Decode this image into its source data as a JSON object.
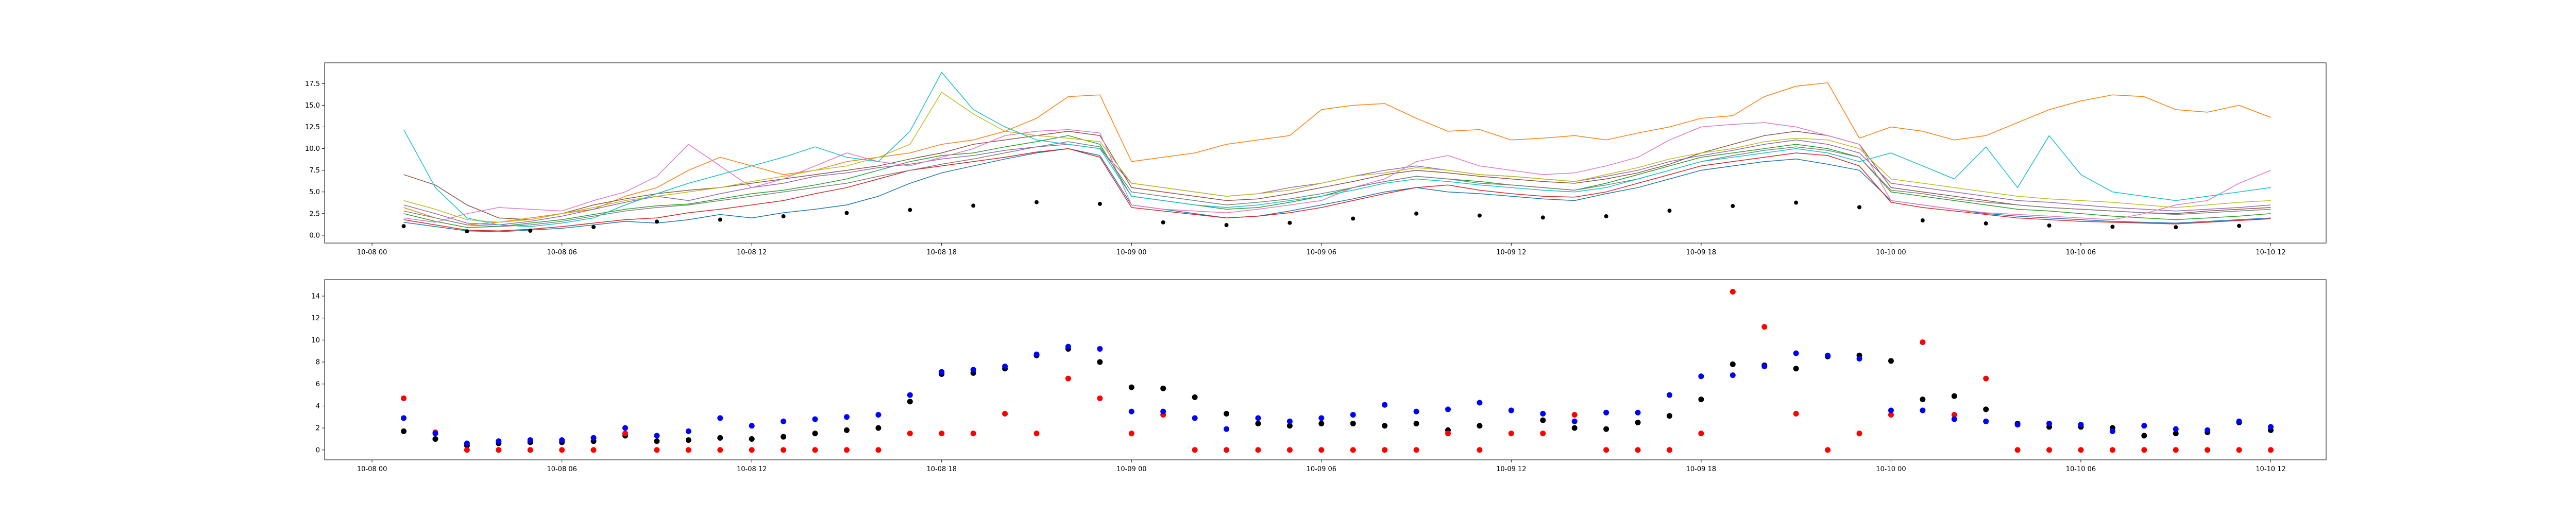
{
  "chart_data": [
    {
      "type": "line",
      "title": "",
      "xlabel": "",
      "ylabel": "",
      "xlim": [
        "2000-10-07T22:30",
        "2000-10-10T13:45"
      ],
      "ylim": [
        -0.9,
        19.9
      ],
      "x_ticks": [
        "10-08 00",
        "10-08 06",
        "10-08 12",
        "10-08 18",
        "10-09 00",
        "10-09 06",
        "10-09 12",
        "10-09 18",
        "10-10 00",
        "10-10 06",
        "10-10 12"
      ],
      "y_ticks": [
        0.0,
        2.5,
        5.0,
        7.5,
        10.0,
        12.5,
        15.0,
        17.5
      ],
      "grid": false,
      "x": [
        "2000-10-08T01:00",
        "2000-10-08T02:00",
        "2000-10-08T03:00",
        "2000-10-08T04:00",
        "2000-10-08T05:00",
        "2000-10-08T06:00",
        "2000-10-08T07:00",
        "2000-10-08T08:00",
        "2000-10-08T09:00",
        "2000-10-08T10:00",
        "2000-10-08T11:00",
        "2000-10-08T12:00",
        "2000-10-08T13:00",
        "2000-10-08T14:00",
        "2000-10-08T15:00",
        "2000-10-08T16:00",
        "2000-10-08T17:00",
        "2000-10-08T18:00",
        "2000-10-08T19:00",
        "2000-10-08T20:00",
        "2000-10-08T21:00",
        "2000-10-08T22:00",
        "2000-10-08T23:00",
        "2000-10-09T00:00",
        "2000-10-09T01:00",
        "2000-10-09T02:00",
        "2000-10-09T03:00",
        "2000-10-09T04:00",
        "2000-10-09T05:00",
        "2000-10-09T06:00",
        "2000-10-09T07:00",
        "2000-10-09T08:00",
        "2000-10-09T09:00",
        "2000-10-09T10:00",
        "2000-10-09T11:00",
        "2000-10-09T12:00",
        "2000-10-09T13:00",
        "2000-10-09T14:00",
        "2000-10-09T15:00",
        "2000-10-09T16:00",
        "2000-10-09T17:00",
        "2000-10-09T18:00",
        "2000-10-09T19:00",
        "2000-10-09T20:00",
        "2000-10-09T21:00",
        "2000-10-09T22:00",
        "2000-10-09T23:00",
        "2000-10-10T00:00",
        "2000-10-10T01:00",
        "2000-10-10T02:00",
        "2000-10-10T03:00",
        "2000-10-10T04:00",
        "2000-10-10T05:00",
        "2000-10-10T06:00",
        "2000-10-10T07:00",
        "2000-10-10T08:00",
        "2000-10-10T09:00",
        "2000-10-10T10:00",
        "2000-10-10T11:00",
        "2000-10-10T12:00"
      ],
      "series": [
        {
          "color": "#1f77b4",
          "values": [
            1.5,
            1.0,
            0.5,
            0.4,
            0.6,
            0.8,
            1.2,
            1.6,
            1.4,
            1.8,
            2.4,
            2.0,
            2.6,
            3.0,
            3.5,
            4.5,
            6.0,
            7.2,
            8.0,
            8.8,
            9.5,
            10.0,
            9.2,
            3.5,
            3.0,
            2.5,
            2.0,
            2.2,
            2.8,
            3.5,
            4.2,
            5.0,
            5.5,
            5.0,
            4.8,
            4.5,
            4.2,
            4.0,
            4.8,
            5.5,
            6.5,
            7.5,
            8.0,
            8.5,
            8.8,
            8.2,
            7.5,
            4.0,
            3.5,
            3.0,
            2.5,
            2.2,
            2.0,
            1.8,
            1.6,
            1.5,
            1.4,
            1.6,
            1.8,
            2.0
          ]
        },
        {
          "color": "#ff7f0e",
          "values": [
            3.2,
            2.0,
            1.2,
            1.5,
            2.0,
            2.5,
            3.0,
            4.5,
            5.5,
            7.5,
            9.0,
            8.0,
            7.0,
            7.5,
            8.5,
            9.0,
            9.5,
            10.5,
            11.0,
            12.0,
            13.5,
            16.0,
            16.2,
            8.5,
            9.0,
            9.5,
            10.5,
            11.0,
            11.5,
            14.5,
            15.0,
            15.2,
            13.5,
            12.0,
            12.2,
            11.0,
            11.2,
            11.5,
            11.0,
            11.8,
            12.5,
            13.5,
            13.8,
            16.0,
            17.2,
            17.6,
            11.2,
            12.5,
            12.0,
            11.0,
            11.5,
            13.0,
            14.5,
            15.5,
            16.2,
            16.0,
            14.5,
            14.2,
            15.0,
            13.6
          ]
        },
        {
          "color": "#2ca02c",
          "values": [
            2.5,
            1.6,
            0.9,
            1.0,
            1.4,
            1.8,
            2.4,
            3.0,
            3.4,
            3.6,
            4.2,
            4.8,
            5.2,
            5.8,
            6.5,
            7.5,
            8.5,
            9.2,
            9.5,
            10.2,
            10.8,
            11.5,
            10.5,
            4.5,
            4.0,
            3.5,
            3.0,
            3.2,
            3.8,
            4.5,
            5.5,
            6.2,
            6.8,
            6.5,
            6.2,
            5.8,
            5.5,
            5.2,
            6.0,
            7.0,
            8.0,
            9.0,
            9.5,
            10.0,
            10.5,
            10.0,
            9.0,
            5.0,
            4.5,
            4.0,
            3.5,
            3.0,
            2.8,
            2.5,
            2.2,
            2.0,
            1.8,
            2.0,
            2.2,
            2.5
          ]
        },
        {
          "color": "#d62728",
          "values": [
            1.8,
            1.2,
            0.6,
            0.5,
            0.7,
            1.0,
            1.4,
            1.8,
            2.0,
            2.6,
            3.0,
            3.5,
            4.0,
            4.8,
            5.5,
            6.5,
            7.5,
            8.0,
            8.5,
            9.0,
            9.6,
            10.0,
            9.0,
            3.2,
            2.8,
            2.4,
            2.0,
            2.2,
            2.6,
            3.2,
            4.0,
            4.8,
            5.5,
            5.8,
            5.2,
            4.8,
            4.5,
            4.4,
            5.0,
            6.0,
            7.0,
            8.0,
            8.5,
            9.0,
            9.5,
            9.2,
            8.0,
            3.8,
            3.2,
            2.8,
            2.4,
            2.0,
            1.8,
            1.6,
            1.5,
            1.4,
            1.3,
            1.5,
            1.7,
            1.9
          ]
        },
        {
          "color": "#9467bd",
          "values": [
            3.5,
            2.5,
            1.4,
            1.2,
            1.6,
            2.2,
            3.0,
            3.8,
            4.5,
            4.0,
            4.8,
            5.5,
            6.0,
            6.8,
            7.2,
            7.8,
            8.2,
            8.8,
            9.2,
            9.8,
            10.2,
            10.5,
            10.0,
            6.0,
            5.5,
            5.0,
            4.5,
            4.8,
            5.5,
            6.0,
            6.8,
            7.5,
            8.0,
            7.5,
            7.0,
            6.8,
            6.5,
            6.2,
            6.8,
            7.5,
            8.5,
            9.2,
            9.8,
            10.5,
            11.0,
            10.5,
            9.5,
            6.0,
            5.5,
            5.0,
            4.5,
            4.0,
            3.8,
            3.5,
            3.2,
            3.0,
            2.8,
            3.0,
            3.2,
            3.5
          ]
        },
        {
          "color": "#8c564b",
          "values": [
            7.0,
            5.8,
            3.5,
            2.0,
            1.8,
            2.5,
            3.5,
            4.2,
            4.8,
            5.2,
            5.5,
            6.0,
            6.5,
            7.0,
            7.5,
            8.0,
            8.8,
            9.5,
            10.5,
            11.0,
            11.5,
            12.0,
            11.5,
            5.5,
            5.0,
            4.5,
            4.0,
            4.2,
            4.8,
            5.5,
            6.2,
            7.0,
            7.5,
            7.2,
            6.8,
            6.5,
            6.2,
            6.0,
            6.5,
            7.2,
            8.2,
            9.5,
            10.5,
            11.5,
            12.0,
            11.5,
            10.5,
            5.5,
            5.0,
            4.5,
            4.0,
            3.5,
            3.2,
            3.0,
            2.8,
            2.6,
            2.5,
            2.8,
            3.0,
            3.2
          ]
        },
        {
          "color": "#e377c2",
          "values": [
            2.0,
            1.5,
            2.5,
            3.2,
            3.0,
            2.8,
            4.0,
            5.0,
            6.8,
            10.5,
            8.0,
            5.5,
            6.5,
            8.0,
            9.5,
            8.5,
            8.0,
            9.0,
            10.0,
            11.5,
            12.0,
            12.2,
            11.8,
            3.5,
            3.0,
            2.8,
            2.6,
            3.0,
            3.5,
            4.0,
            5.5,
            6.5,
            8.5,
            9.2,
            8.0,
            7.5,
            7.0,
            7.2,
            8.0,
            9.0,
            11.0,
            12.5,
            12.8,
            13.0,
            12.5,
            11.5,
            10.5,
            4.0,
            3.5,
            3.0,
            2.6,
            2.4,
            2.2,
            2.0,
            1.8,
            2.5,
            3.5,
            4.0,
            6.0,
            7.5
          ]
        },
        {
          "color": "#7f7f7f",
          "values": [
            2.8,
            2.0,
            1.2,
            1.0,
            1.2,
            1.6,
            2.2,
            2.8,
            3.2,
            3.5,
            4.0,
            4.5,
            5.0,
            5.5,
            6.0,
            6.8,
            7.5,
            8.2,
            8.8,
            9.5,
            10.2,
            10.8,
            10.2,
            5.0,
            4.5,
            4.0,
            3.5,
            3.8,
            4.2,
            4.8,
            5.5,
            6.2,
            6.8,
            6.5,
            6.0,
            5.8,
            5.5,
            5.2,
            5.8,
            6.5,
            7.5,
            8.5,
            9.2,
            9.8,
            10.2,
            9.8,
            9.0,
            5.2,
            4.8,
            4.2,
            3.8,
            3.5,
            3.2,
            3.0,
            2.8,
            2.6,
            2.4,
            2.6,
            2.8,
            3.0
          ]
        },
        {
          "color": "#bcbd22",
          "values": [
            4.0,
            3.0,
            1.8,
            1.5,
            1.8,
            2.5,
            3.2,
            4.0,
            4.5,
            5.0,
            5.5,
            6.2,
            6.8,
            7.5,
            8.0,
            9.0,
            10.5,
            16.5,
            14.0,
            12.0,
            11.5,
            11.2,
            10.8,
            6.0,
            5.5,
            5.0,
            4.5,
            4.8,
            5.2,
            6.0,
            6.8,
            7.2,
            7.8,
            7.5,
            7.0,
            6.8,
            6.5,
            6.2,
            7.0,
            7.8,
            8.8,
            9.5,
            10.0,
            10.8,
            11.2,
            11.0,
            10.0,
            6.5,
            6.0,
            5.5,
            5.0,
            4.5,
            4.2,
            4.0,
            3.8,
            3.5,
            3.2,
            3.5,
            3.8,
            4.0
          ]
        },
        {
          "color": "#17becf",
          "values": [
            12.2,
            5.5,
            2.0,
            1.2,
            1.0,
            1.4,
            2.0,
            3.5,
            4.8,
            6.0,
            7.0,
            8.0,
            9.0,
            10.2,
            9.0,
            8.5,
            12.0,
            18.8,
            14.5,
            12.5,
            11.0,
            10.5,
            10.0,
            4.5,
            4.0,
            3.5,
            3.2,
            3.5,
            4.0,
            4.5,
            5.2,
            6.0,
            6.5,
            6.2,
            5.8,
            5.5,
            5.2,
            5.0,
            5.5,
            6.5,
            7.5,
            8.5,
            9.0,
            9.5,
            10.0,
            9.5,
            8.5,
            9.5,
            8.0,
            6.5,
            10.2,
            5.5,
            11.5,
            7.0,
            5.0,
            4.5,
            4.0,
            4.5,
            5.0,
            5.5
          ]
        }
      ]
    },
    {
      "type": "scatter",
      "title": "",
      "xlabel": "",
      "ylabel": "",
      "xlim": [
        "2000-10-07T22:30",
        "2000-10-10T13:45"
      ],
      "ylim": [
        -0.9,
        15.5
      ],
      "x_ticks": [
        "10-08 00",
        "10-08 06",
        "10-08 12",
        "10-08 18",
        "10-09 00",
        "10-09 06",
        "10-09 12",
        "10-09 18",
        "10-10 00",
        "10-10 06",
        "10-10 12"
      ],
      "y_ticks": [
        0,
        2,
        4,
        6,
        8,
        10,
        12,
        14
      ],
      "grid": false,
      "x": [
        "2000-10-08T01:00",
        "2000-10-08T02:00",
        "2000-10-08T03:00",
        "2000-10-08T04:00",
        "2000-10-08T05:00",
        "2000-10-08T06:00",
        "2000-10-08T07:00",
        "2000-10-08T08:00",
        "2000-10-08T09:00",
        "2000-10-08T10:00",
        "2000-10-08T11:00",
        "2000-10-08T12:00",
        "2000-10-08T13:00",
        "2000-10-08T14:00",
        "2000-10-08T15:00",
        "2000-10-08T16:00",
        "2000-10-08T17:00",
        "2000-10-08T18:00",
        "2000-10-08T19:00",
        "2000-10-08T20:00",
        "2000-10-08T21:00",
        "2000-10-08T22:00",
        "2000-10-08T23:00",
        "2000-10-09T00:00",
        "2000-10-09T01:00",
        "2000-10-09T02:00",
        "2000-10-09T03:00",
        "2000-10-09T04:00",
        "2000-10-09T05:00",
        "2000-10-09T06:00",
        "2000-10-09T07:00",
        "2000-10-09T08:00",
        "2000-10-09T09:00",
        "2000-10-09T10:00",
        "2000-10-09T11:00",
        "2000-10-09T12:00",
        "2000-10-09T13:00",
        "2000-10-09T14:00",
        "2000-10-09T15:00",
        "2000-10-09T16:00",
        "2000-10-09T17:00",
        "2000-10-09T18:00",
        "2000-10-09T19:00",
        "2000-10-09T20:00",
        "2000-10-09T21:00",
        "2000-10-09T22:00",
        "2000-10-09T23:00",
        "2000-10-10T00:00",
        "2000-10-10T01:00",
        "2000-10-10T02:00",
        "2000-10-10T03:00",
        "2000-10-10T04:00",
        "2000-10-10T05:00",
        "2000-10-10T06:00",
        "2000-10-10T07:00",
        "2000-10-10T08:00",
        "2000-10-10T09:00",
        "2000-10-10T10:00",
        "2000-10-10T11:00",
        "2000-10-10T12:00"
      ],
      "series": [
        {
          "color": "#000000",
          "values": [
            1.7,
            1.0,
            0.4,
            0.6,
            0.7,
            0.7,
            0.8,
            1.3,
            0.8,
            0.9,
            1.1,
            1.0,
            1.2,
            1.5,
            1.8,
            2.0,
            4.4,
            6.9,
            7.0,
            7.4,
            8.6,
            9.2,
            8.0,
            5.7,
            5.6,
            4.8,
            3.3,
            2.4,
            2.2,
            2.4,
            2.4,
            2.2,
            2.4,
            1.8,
            2.2,
            3.6,
            2.7,
            2.0,
            1.9,
            2.5,
            3.1,
            4.6,
            7.8,
            7.7,
            7.4,
            8.5,
            8.6,
            8.1,
            4.6,
            4.9,
            3.7,
            2.4,
            2.1,
            2.1,
            2.0,
            1.3,
            1.5,
            1.6,
            2.5,
            1.8
          ]
        },
        {
          "color": "#ff0000",
          "values": [
            4.7,
            1.6,
            0.0,
            0.0,
            0.0,
            0.0,
            0.0,
            1.5,
            0.0,
            0.0,
            0.0,
            0.0,
            0.0,
            0.0,
            0.0,
            0.0,
            1.5,
            1.5,
            1.5,
            3.3,
            1.5,
            6.5,
            4.7,
            1.5,
            3.2,
            0.0,
            0.0,
            0.0,
            0.0,
            0.0,
            0.0,
            0.0,
            0.0,
            1.5,
            0.0,
            1.5,
            1.5,
            3.2,
            0.0,
            0.0,
            0.0,
            1.5,
            14.4,
            11.2,
            3.3,
            0.0,
            1.5,
            3.2,
            9.8,
            3.2,
            6.5,
            0.0,
            0.0,
            0.0,
            0.0,
            0.0,
            0.0,
            0.0,
            0.0,
            0.0
          ]
        },
        {
          "color": "#0000ff",
          "values": [
            2.9,
            1.5,
            0.6,
            0.8,
            0.9,
            0.9,
            1.1,
            2.0,
            1.3,
            1.7,
            2.9,
            2.2,
            2.6,
            2.8,
            3.0,
            3.2,
            5.0,
            7.1,
            7.3,
            7.6,
            8.7,
            9.4,
            9.2,
            3.5,
            3.5,
            2.9,
            1.9,
            2.9,
            2.6,
            2.9,
            3.2,
            4.1,
            3.5,
            3.7,
            4.3,
            3.6,
            3.3,
            2.6,
            3.4,
            3.4,
            5.0,
            6.7,
            6.8,
            7.6,
            8.8,
            8.6,
            8.3,
            3.6,
            3.6,
            2.8,
            2.6,
            2.3,
            2.4,
            2.3,
            1.7,
            2.2,
            1.9,
            1.8,
            2.6,
            2.1
          ]
        }
      ]
    }
  ]
}
